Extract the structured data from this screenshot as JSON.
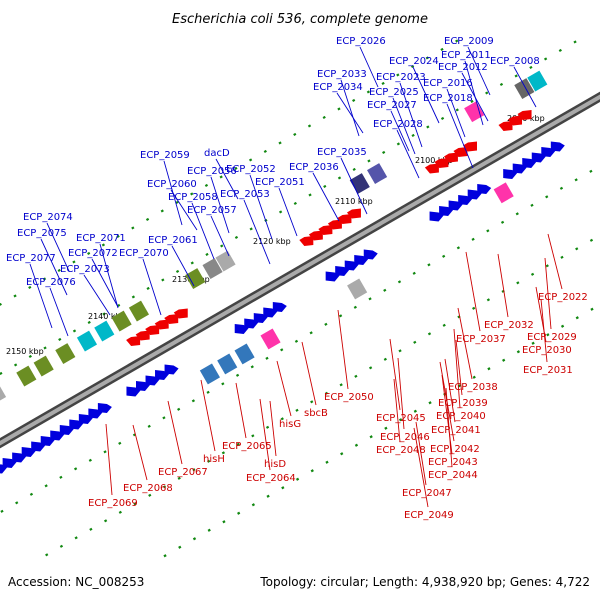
{
  "title": "Escherichia coli 536, complete genome",
  "footer": {
    "accession": "Accession: NC_008253",
    "summary": "Topology: circular; Length: 4,938,920 bp; Genes: 4,722"
  },
  "colors": {
    "forward_gene": "#0000dd",
    "reverse_gene": "#ee0000",
    "forward_label": "#0000cc",
    "reverse_label": "#cc0000",
    "backbone": "#777777",
    "tick": "#118811"
  },
  "kbp_ticks": [
    {
      "text": "2090 kbp"
    },
    {
      "text": "2100 kbp"
    },
    {
      "text": "2110 kbp"
    },
    {
      "text": "2120 kbp"
    },
    {
      "text": "2130 kbp"
    },
    {
      "text": "2140 kbp"
    },
    {
      "text": "2150 kbp"
    }
  ],
  "forward_labels": [
    {
      "text": "ECP_2026"
    },
    {
      "text": "ECP_2009"
    },
    {
      "text": "ECP_2024"
    },
    {
      "text": "ECP_2011"
    },
    {
      "text": "ECP_2008"
    },
    {
      "text": "ECP_2012"
    },
    {
      "text": "ECP_2033"
    },
    {
      "text": "ECP_2023"
    },
    {
      "text": "ECP_2034"
    },
    {
      "text": "ECP_2016"
    },
    {
      "text": "ECP_2025"
    },
    {
      "text": "ECP_2018"
    },
    {
      "text": "ECP_2027"
    },
    {
      "text": "ECP_2028"
    },
    {
      "text": "ECP_2035"
    },
    {
      "text": "ECP_2059"
    },
    {
      "text": "dacD"
    },
    {
      "text": "ECP_2036"
    },
    {
      "text": "ECP_2056"
    },
    {
      "text": "ECP_2052"
    },
    {
      "text": "ECP_2060"
    },
    {
      "text": "ECP_2051"
    },
    {
      "text": "ECP_2058"
    },
    {
      "text": "ECP_2053"
    },
    {
      "text": "ECP_2057"
    },
    {
      "text": "ECP_2074"
    },
    {
      "text": "ECP_2075"
    },
    {
      "text": "ECP_2071"
    },
    {
      "text": "ECP_2061"
    },
    {
      "text": "ECP_2072"
    },
    {
      "text": "ECP_2070"
    },
    {
      "text": "ECP_2077"
    },
    {
      "text": "ECP_2073"
    },
    {
      "text": "ECP_2076"
    }
  ],
  "reverse_labels": [
    {
      "text": "ECP_2022"
    },
    {
      "text": "ECP_2032"
    },
    {
      "text": "ECP_2029"
    },
    {
      "text": "ECP_2037"
    },
    {
      "text": "ECP_2030"
    },
    {
      "text": "ECP_2031"
    },
    {
      "text": "ECP_2038"
    },
    {
      "text": "ECP_2050"
    },
    {
      "text": "ECP_2039"
    },
    {
      "text": "sbcB"
    },
    {
      "text": "ECP_2045"
    },
    {
      "text": "ECP_2040"
    },
    {
      "text": "hisG"
    },
    {
      "text": "ECP_2041"
    },
    {
      "text": "ECP_2046"
    },
    {
      "text": "ECP_2042"
    },
    {
      "text": "ECP_2065"
    },
    {
      "text": "ECP_2048"
    },
    {
      "text": "hisH"
    },
    {
      "text": "ECP_2043"
    },
    {
      "text": "hisD"
    },
    {
      "text": "ECP_2067"
    },
    {
      "text": "ECP_2064"
    },
    {
      "text": "ECP_2044"
    },
    {
      "text": "ECP_2068"
    },
    {
      "text": "ECP_2047"
    },
    {
      "text": "ECP_2069"
    },
    {
      "text": "ECP_2049"
    }
  ]
}
